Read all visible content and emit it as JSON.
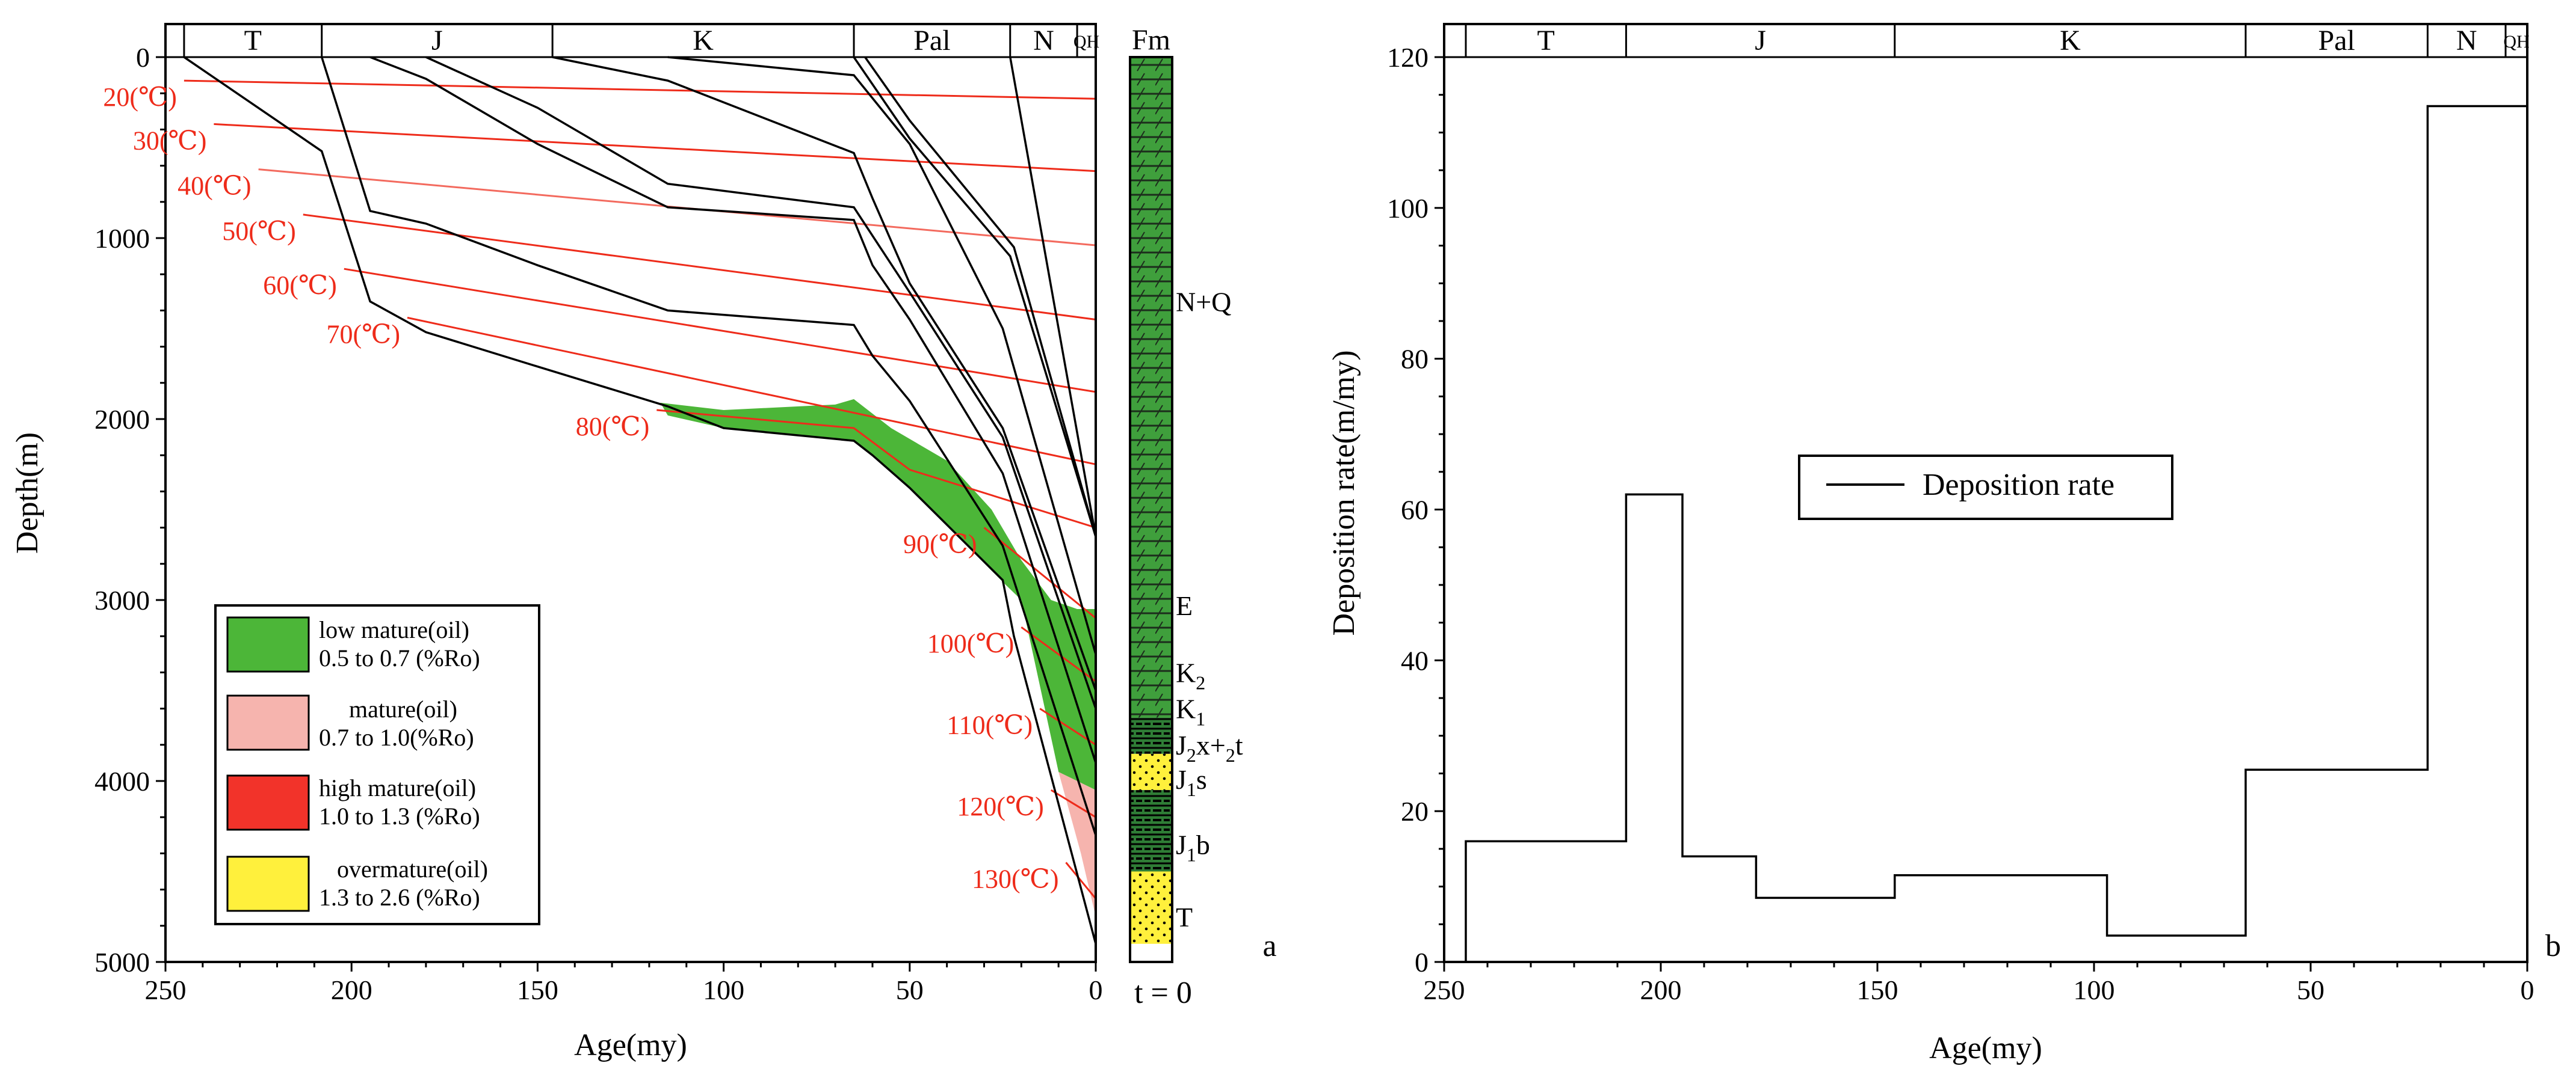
{
  "colors": {
    "low_mature": "#4cb638",
    "mature": "#f6b4ae",
    "high_mature": "#f2332a",
    "overmature": "#fff03c",
    "isotherm": "#ee2b1a",
    "formation_green": "#3f9f3c"
  },
  "chart_data": [
    {
      "type": "line",
      "panel_letter": "a",
      "title": "",
      "xlabel": "Age(my)",
      "ylabel": "Depth(m)",
      "xlim": [
        250,
        0
      ],
      "ylim": [
        5000,
        0
      ],
      "x_ticks": [
        "250",
        "200",
        "150",
        "100",
        "50",
        "0"
      ],
      "y_ticks": [
        "0",
        "1000",
        "2000",
        "3000",
        "4000",
        "5000"
      ],
      "periods": [
        {
          "label": "T",
          "start": 245,
          "end": 208
        },
        {
          "label": "J",
          "start": 208,
          "end": 146
        },
        {
          "label": "K",
          "start": 146,
          "end": 65
        },
        {
          "label": "Pal",
          "start": 65,
          "end": 23
        },
        {
          "label": "N",
          "start": 23,
          "end": 5
        },
        {
          "label": "QH",
          "start": 5,
          "end": 0
        }
      ],
      "fm_header": "Fm",
      "t_label": "t = 0",
      "burial_curves": [
        {
          "x": [
            245,
            208,
            195,
            180,
            150,
            115,
            100,
            65,
            60,
            50,
            25,
            22,
            0
          ],
          "y": [
            0,
            520,
            1350,
            1520,
            1710,
            1930,
            2050,
            2120,
            2200,
            2380,
            2890,
            3200,
            4900
          ]
        },
        {
          "x": [
            208,
            195,
            180,
            150,
            115,
            65,
            60,
            50,
            25,
            0
          ],
          "y": [
            0,
            850,
            920,
            1150,
            1400,
            1480,
            1650,
            1900,
            2700,
            4300
          ]
        },
        {
          "x": [
            195,
            180,
            150,
            115,
            65,
            60,
            50,
            25,
            0
          ],
          "y": [
            0,
            120,
            480,
            830,
            900,
            1150,
            1450,
            2300,
            3900
          ]
        },
        {
          "x": [
            180,
            150,
            115,
            65,
            50,
            25,
            0
          ],
          "y": [
            0,
            280,
            700,
            830,
            1300,
            2100,
            3600
          ]
        },
        {
          "x": [
            146,
            115,
            65,
            60,
            50,
            25,
            0
          ],
          "y": [
            0,
            130,
            530,
            780,
            1250,
            2050,
            3500
          ]
        },
        {
          "x": [
            115,
            65,
            50,
            25,
            0
          ],
          "y": [
            0,
            100,
            480,
            1500,
            3300
          ]
        },
        {
          "x": [
            65,
            60,
            50,
            23,
            0
          ],
          "y": [
            0,
            150,
            450,
            1100,
            2650
          ]
        },
        {
          "x": [
            62,
            50,
            22,
            0
          ],
          "y": [
            0,
            350,
            1050,
            2650
          ]
        },
        {
          "x": [
            23,
            10,
            0
          ],
          "y": [
            0,
            1500,
            2650
          ]
        }
      ],
      "isotherms": [
        {
          "label": "20(℃)",
          "x": [
            245,
            0
          ],
          "y": [
            130,
            230
          ]
        },
        {
          "label": "30(℃)",
          "x": [
            237,
            0
          ],
          "y": [
            370,
            630
          ]
        },
        {
          "label": "40(℃)",
          "x": [
            225,
            0
          ],
          "y": [
            620,
            1040
          ],
          "faint": true
        },
        {
          "label": "50(℃)",
          "x": [
            213,
            0
          ],
          "y": [
            870,
            1450
          ]
        },
        {
          "label": "60(℃)",
          "x": [
            202,
            0
          ],
          "y": [
            1170,
            1850
          ]
        },
        {
          "label": "70(℃)",
          "x": [
            185,
            0
          ],
          "y": [
            1440,
            2250
          ]
        },
        {
          "label": "80(℃)",
          "x": [
            118,
            65,
            50,
            0
          ],
          "y": [
            1950,
            2050,
            2280,
            2600
          ]
        },
        {
          "label": "90(℃)",
          "x": [
            30,
            0
          ],
          "y": [
            2600,
            3100
          ]
        },
        {
          "label": "100(℃)",
          "x": [
            20,
            0
          ],
          "y": [
            3150,
            3450
          ]
        },
        {
          "label": "110(℃)",
          "x": [
            15,
            0
          ],
          "y": [
            3600,
            3800
          ]
        },
        {
          "label": "120(℃)",
          "x": [
            12,
            0
          ],
          "y": [
            4050,
            4200
          ]
        },
        {
          "label": "130(℃)",
          "x": [
            8,
            0
          ],
          "y": [
            4450,
            4650
          ]
        }
      ],
      "maturity_zones": [
        {
          "zone": "low_mature",
          "x": [
            117,
            100,
            70,
            65,
            55,
            40,
            28,
            20,
            12,
            5,
            0,
            0,
            10,
            20,
            25,
            50,
            60,
            65,
            100,
            115
          ],
          "y": [
            1910,
            1950,
            1920,
            1890,
            2050,
            2230,
            2500,
            2780,
            3000,
            3050,
            3050,
            4050,
            3950,
            3000,
            2900,
            2380,
            2200,
            2120,
            2050,
            1980
          ]
        },
        {
          "zone": "mature",
          "x": [
            10,
            0,
            0,
            4
          ],
          "y": [
            3950,
            4050,
            4750,
            4400
          ]
        }
      ],
      "legend": [
        {
          "zone": "low_mature",
          "line1": "low mature(oil)",
          "line2": "0.5 to 0.7 (%Ro)"
        },
        {
          "zone": "mature",
          "line1": "mature(oil)",
          "line2": "0.7 to 1.0(%Ro)"
        },
        {
          "zone": "high_mature",
          "line1": "high mature(oil)",
          "line2": "1.0 to 1.3 (%Ro)"
        },
        {
          "zone": "overmature",
          "line1": "overmature(oil)",
          "line2": "1.3 to 2.6 (%Ro)"
        }
      ],
      "formations": [
        {
          "base": "N+Q",
          "label_depth": 1350
        },
        {
          "base": "E",
          "label_depth": 3030
        },
        {
          "base": "K2",
          "label_depth": 3400
        },
        {
          "base": "K1",
          "label_depth": 3600
        },
        {
          "base": "J2x+2t",
          "label_depth": 3800
        },
        {
          "base": "J1s",
          "label_depth": 3990
        },
        {
          "base": "J1b",
          "label_depth": 4350
        },
        {
          "base": "T",
          "label_depth": 4750
        }
      ],
      "formation_column": [
        {
          "from": 0,
          "to": 3650,
          "lith": "green"
        },
        {
          "from": 3650,
          "to": 3850,
          "lith": "dark"
        },
        {
          "from": 3850,
          "to": 4050,
          "lith": "yellow"
        },
        {
          "from": 4050,
          "to": 4500,
          "lith": "dark"
        },
        {
          "from": 4500,
          "to": 4900,
          "lith": "yellow"
        },
        {
          "from": 4900,
          "to": 5000,
          "lith": "white"
        }
      ]
    },
    {
      "type": "line",
      "panel_letter": "b",
      "title": "",
      "xlabel": "Age(my)",
      "ylabel": "Deposition rate(m/my)",
      "xlim": [
        250,
        0
      ],
      "ylim": [
        0,
        120
      ],
      "x_ticks": [
        "250",
        "200",
        "150",
        "100",
        "50",
        "0"
      ],
      "y_ticks": [
        "0",
        "20",
        "40",
        "60",
        "80",
        "100",
        "120"
      ],
      "periods": [
        {
          "label": "T",
          "start": 245,
          "end": 208
        },
        {
          "label": "J",
          "start": 208,
          "end": 146
        },
        {
          "label": "K",
          "start": 146,
          "end": 65
        },
        {
          "label": "Pal",
          "start": 65,
          "end": 23
        },
        {
          "label": "N",
          "start": 23,
          "end": 5
        },
        {
          "label": "QH",
          "start": 5,
          "end": 0
        }
      ],
      "legend": [
        "Deposition rate"
      ],
      "series": [
        {
          "name": "Deposition rate",
          "step": true,
          "x": [
            245,
            208,
            208,
            195,
            195,
            178,
            178,
            146,
            146,
            97,
            97,
            65,
            65,
            23,
            23,
            0
          ],
          "y": [
            16,
            16,
            62,
            62,
            14,
            14,
            8.5,
            8.5,
            11.5,
            11.5,
            3.5,
            3.5,
            25.5,
            25.5,
            113.5,
            113.5
          ]
        }
      ]
    }
  ]
}
